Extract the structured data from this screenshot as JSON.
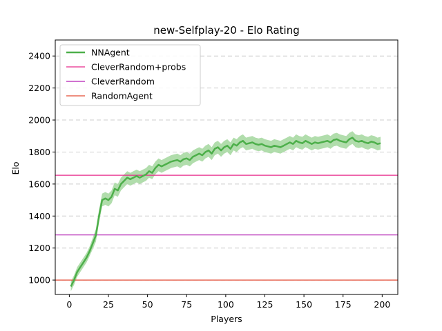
{
  "chart_data": {
    "type": "line",
    "title": "new-Selfplay-20 - Elo Rating",
    "xlabel": "Players",
    "ylabel": "Elo",
    "xlim": [
      -9,
      210
    ],
    "ylim": [
      910,
      2500
    ],
    "xticks": [
      0,
      25,
      50,
      75,
      100,
      125,
      150,
      175,
      200
    ],
    "yticks": [
      1000,
      1200,
      1400,
      1600,
      1800,
      2000,
      2200,
      2400
    ],
    "grid": "horizontal-dashed",
    "legend_position": "top-left",
    "series": [
      {
        "name": "NNAgent",
        "color": "#4daf4a",
        "band_color": "#a8d9a3",
        "x": [
          1,
          3,
          5,
          7,
          9,
          11,
          13,
          15,
          17,
          19,
          21,
          23,
          25,
          27,
          29,
          31,
          33,
          35,
          37,
          39,
          41,
          43,
          45,
          47,
          49,
          51,
          53,
          55,
          57,
          59,
          61,
          63,
          65,
          67,
          69,
          71,
          73,
          75,
          77,
          79,
          81,
          83,
          85,
          87,
          89,
          91,
          93,
          95,
          97,
          99,
          101,
          103,
          105,
          107,
          109,
          111,
          113,
          115,
          117,
          119,
          121,
          123,
          125,
          127,
          129,
          131,
          133,
          135,
          137,
          139,
          141,
          143,
          145,
          147,
          149,
          151,
          153,
          155,
          157,
          159,
          161,
          163,
          165,
          167,
          169,
          171,
          173,
          175,
          177,
          179,
          181,
          183,
          185,
          187,
          189,
          191,
          193,
          195,
          197,
          199
        ],
        "y": [
          960,
          1000,
          1050,
          1080,
          1110,
          1140,
          1180,
          1230,
          1280,
          1400,
          1500,
          1510,
          1500,
          1520,
          1570,
          1560,
          1600,
          1620,
          1640,
          1630,
          1640,
          1650,
          1640,
          1650,
          1660,
          1680,
          1670,
          1700,
          1720,
          1710,
          1720,
          1730,
          1740,
          1745,
          1750,
          1740,
          1755,
          1760,
          1750,
          1770,
          1780,
          1790,
          1780,
          1800,
          1810,
          1790,
          1820,
          1830,
          1810,
          1830,
          1840,
          1820,
          1850,
          1840,
          1860,
          1870,
          1850,
          1855,
          1860,
          1850,
          1845,
          1850,
          1840,
          1835,
          1830,
          1840,
          1835,
          1830,
          1840,
          1850,
          1860,
          1850,
          1870,
          1860,
          1855,
          1870,
          1860,
          1850,
          1860,
          1855,
          1860,
          1865,
          1870,
          1860,
          1875,
          1880,
          1870,
          1865,
          1860,
          1880,
          1890,
          1870,
          1865,
          1870,
          1860,
          1855,
          1865,
          1860,
          1850,
          1855
        ],
        "band": [
          30,
          30,
          30,
          30,
          30,
          30,
          30,
          35,
          40,
          40,
          40,
          40,
          40,
          40,
          40,
          40,
          40,
          40,
          40,
          40,
          40,
          40,
          40,
          40,
          40,
          40,
          40,
          40,
          40,
          40,
          40,
          40,
          40,
          40,
          40,
          40,
          40,
          40,
          40,
          40,
          40,
          40,
          40,
          40,
          40,
          40,
          40,
          40,
          40,
          40,
          40,
          40,
          40,
          40,
          40,
          40,
          40,
          40,
          40,
          40,
          40,
          40,
          40,
          40,
          40,
          40,
          40,
          40,
          40,
          40,
          40,
          40,
          40,
          40,
          40,
          40,
          40,
          40,
          40,
          40,
          40,
          40,
          40,
          40,
          40,
          40,
          40,
          40,
          40,
          40,
          40,
          40,
          40,
          40,
          40,
          40,
          40,
          40,
          40,
          40
        ]
      }
    ],
    "reference_lines": [
      {
        "name": "CleverRandom+probs",
        "y": 1655,
        "color": "#e7298a"
      },
      {
        "name": "CleverRandom",
        "y": 1282,
        "color": "#b31fb3"
      },
      {
        "name": "RandomAgent",
        "y": 1000,
        "color": "#e34a33"
      }
    ]
  }
}
